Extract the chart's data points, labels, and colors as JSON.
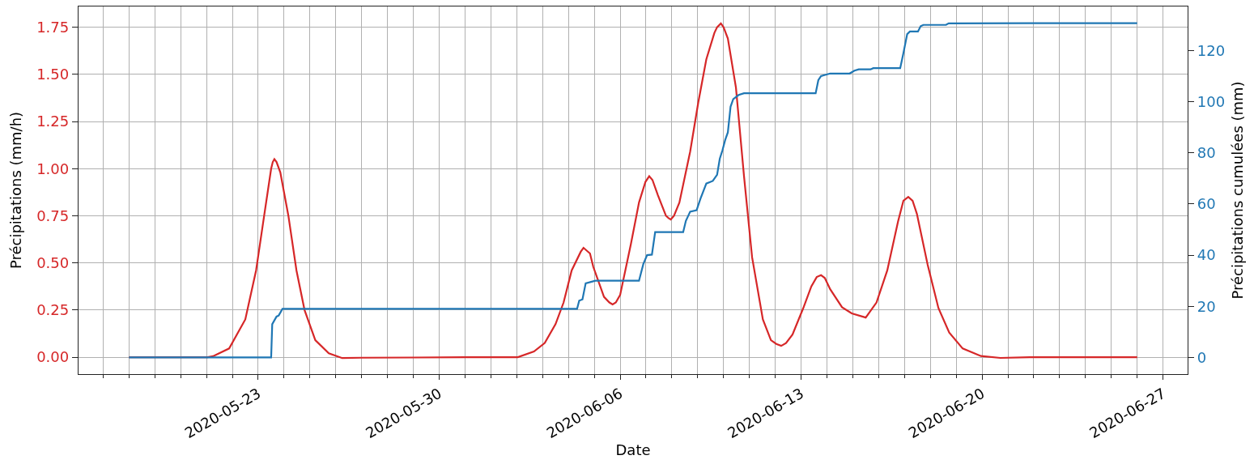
{
  "chart_data": {
    "type": "line",
    "xlabel": "Date",
    "ylabel": "Précipitations (mm/h)",
    "y2label": "Précipitations cumulées (mm)",
    "series": [
      {
        "color": "#d62728",
        "x": [
          "2020-05-18T00:00",
          "2020-05-21T01:00",
          "2020-05-21T06:00",
          "2020-05-21T21:00",
          "2020-05-22T12:00",
          "2020-05-22T22:00",
          "2020-05-23T05:30",
          "2020-05-23T12:00",
          "2020-05-23T13:30",
          "2020-05-23T15:00",
          "2020-05-23T17:00",
          "2020-05-23T20:30",
          "2020-05-24T04:00",
          "2020-05-24T11:30",
          "2020-05-24T19:00",
          "2020-05-25T05:00",
          "2020-05-25T17:30",
          "2020-05-26T06:00",
          "2020-05-27T00:00",
          "2020-05-29T00:00",
          "2020-05-31T00:00",
          "2020-06-02T01:00",
          "2020-06-02T16:00",
          "2020-06-03T02:00",
          "2020-06-03T12:00",
          "2020-06-03T19:30",
          "2020-06-04T03:00",
          "2020-06-04T11:30",
          "2020-06-04T14:00",
          "2020-06-04T20:00",
          "2020-06-04T23:00",
          "2020-06-05T09:00",
          "2020-06-05T14:00",
          "2020-06-05T17:00",
          "2020-06-05T20:00",
          "2020-06-06T00:00",
          "2020-06-06T10:00",
          "2020-06-06T17:30",
          "2020-06-06T23:30",
          "2020-06-07T03:00",
          "2020-06-07T06:00",
          "2020-06-07T11:00",
          "2020-06-07T18:30",
          "2020-06-07T21:00",
          "2020-06-07T23:00",
          "2020-06-08T02:00",
          "2020-06-08T07:00",
          "2020-06-08T17:00",
          "2020-06-09T00:30",
          "2020-06-09T08:00",
          "2020-06-09T15:30",
          "2020-06-09T18:00",
          "2020-06-09T21:30",
          "2020-06-10T00:00",
          "2020-06-10T04:00",
          "2020-06-10T11:30",
          "2020-06-10T19:00",
          "2020-06-11T02:30",
          "2020-06-11T12:30",
          "2020-06-11T20:00",
          "2020-06-12T01:00",
          "2020-06-12T05:30",
          "2020-06-12T10:00",
          "2020-06-12T16:00",
          "2020-06-13T02:00",
          "2020-06-13T09:30",
          "2020-06-13T14:30",
          "2020-06-13T18:30",
          "2020-06-13T22:00",
          "2020-06-14T03:00",
          "2020-06-14T14:00",
          "2020-06-14T23:00",
          "2020-06-15T12:00",
          "2020-06-15T22:00",
          "2020-06-16T08:00",
          "2020-06-16T18:00",
          "2020-06-16T23:00",
          "2020-06-17T03:30",
          "2020-06-17T07:30",
          "2020-06-17T11:30",
          "2020-06-17T21:30",
          "2020-06-18T07:30",
          "2020-06-18T17:30",
          "2020-06-19T06:00",
          "2020-06-19T23:00",
          "2020-06-20T17:00",
          "2020-06-22T00:00",
          "2020-06-26T00:00"
        ],
        "values": [
          0,
          0,
          0.005,
          0.046,
          0.2,
          0.46,
          0.75,
          1.0,
          1.035,
          1.05,
          1.035,
          0.98,
          0.75,
          0.46,
          0.25,
          0.09,
          0.02,
          -0.005,
          -0.003,
          -0.002,
          0,
          0,
          0.03,
          0.075,
          0.175,
          0.29,
          0.46,
          0.56,
          0.58,
          0.55,
          0.48,
          0.32,
          0.29,
          0.28,
          0.29,
          0.33,
          0.6,
          0.82,
          0.93,
          0.96,
          0.94,
          0.86,
          0.75,
          0.737,
          0.73,
          0.75,
          0.82,
          1.09,
          1.35,
          1.58,
          1.72,
          1.75,
          1.77,
          1.75,
          1.69,
          1.43,
          0.96,
          0.53,
          0.2,
          0.09,
          0.07,
          0.06,
          0.075,
          0.12,
          0.26,
          0.375,
          0.425,
          0.435,
          0.42,
          0.36,
          0.265,
          0.232,
          0.21,
          0.29,
          0.46,
          0.72,
          0.83,
          0.85,
          0.83,
          0.76,
          0.49,
          0.26,
          0.13,
          0.046,
          0.006,
          -0.004,
          0,
          0
        ]
      },
      {
        "color": "#1f77b4",
        "axis": "y2",
        "x": [
          "2020-05-18T00:00",
          "2020-05-23T12:00",
          "2020-05-23T13:00",
          "2020-05-23T17:00",
          "2020-05-23T19:00",
          "2020-05-23T22:30",
          "2020-06-04T08:00",
          "2020-06-04T10:00",
          "2020-06-04T13:00",
          "2020-06-04T16:00",
          "2020-06-05T01:00",
          "2020-06-06T17:30",
          "2020-06-06T21:30",
          "2020-06-07T01:00",
          "2020-06-07T05:30",
          "2020-06-07T08:30",
          "2020-06-08T10:30",
          "2020-06-08T13:00",
          "2020-06-08T17:00",
          "2020-06-08T23:00",
          "2020-06-09T02:30",
          "2020-06-09T08:00",
          "2020-06-09T14:00",
          "2020-06-09T18:00",
          "2020-06-09T20:30",
          "2020-06-09T23:00",
          "2020-06-10T01:30",
          "2020-06-10T04:00",
          "2020-06-10T06:30",
          "2020-06-10T09:00",
          "2020-06-10T14:00",
          "2020-06-10T19:00",
          "2020-06-13T13:30",
          "2020-06-13T16:00",
          "2020-06-13T18:30",
          "2020-06-14T03:00",
          "2020-06-14T21:00",
          "2020-06-15T01:30",
          "2020-06-15T05:30",
          "2020-06-15T16:30",
          "2020-06-15T19:00",
          "2020-06-16T20:00",
          "2020-06-16T23:00",
          "2020-06-17T02:30",
          "2020-06-17T05:00",
          "2020-06-17T12:30",
          "2020-06-17T15:00",
          "2020-06-17T17:30",
          "2020-06-18T14:30",
          "2020-06-18T17:00",
          "2020-06-26T00:00"
        ],
        "values": [
          0,
          0,
          13,
          16,
          16.4,
          19,
          19,
          22.2,
          22.7,
          29,
          30,
          30,
          36.5,
          40,
          40.2,
          49,
          49,
          53.4,
          57,
          57.6,
          62,
          68,
          69,
          71.4,
          77.7,
          81,
          85,
          88,
          98,
          101,
          102.6,
          103.3,
          103.3,
          108.4,
          110,
          111,
          111,
          112.1,
          112.6,
          112.6,
          113.1,
          113.1,
          119,
          126.4,
          127.4,
          127.4,
          129.5,
          130,
          130,
          130.6,
          130.7
        ]
      }
    ],
    "xlim": [
      "2020-05-16T01:10",
      "2020-06-27T22:50"
    ],
    "xticks": [
      {
        "value": "2020-05-17",
        "label": null
      },
      {
        "value": "2020-05-18",
        "label": null
      },
      {
        "value": "2020-05-19",
        "label": null
      },
      {
        "value": "2020-05-20",
        "label": null
      },
      {
        "value": "2020-05-21",
        "label": null
      },
      {
        "value": "2020-05-22",
        "label": null
      },
      "2020-05-23",
      {
        "value": "2020-05-24",
        "label": null
      },
      {
        "value": "2020-05-25",
        "label": null
      },
      {
        "value": "2020-05-26",
        "label": null
      },
      {
        "value": "2020-05-27",
        "label": null
      },
      {
        "value": "2020-05-28",
        "label": null
      },
      {
        "value": "2020-05-29",
        "label": null
      },
      "2020-05-30",
      {
        "value": "2020-05-31",
        "label": null
      },
      {
        "value": "2020-06-01",
        "label": null
      },
      {
        "value": "2020-06-02",
        "label": null
      },
      {
        "value": "2020-06-03",
        "label": null
      },
      {
        "value": "2020-06-04",
        "label": null
      },
      {
        "value": "2020-06-05",
        "label": null
      },
      "2020-06-06",
      {
        "value": "2020-06-07",
        "label": null
      },
      {
        "value": "2020-06-08",
        "label": null
      },
      {
        "value": "2020-06-09",
        "label": null
      },
      {
        "value": "2020-06-10",
        "label": null
      },
      {
        "value": "2020-06-11",
        "label": null
      },
      {
        "value": "2020-06-12",
        "label": null
      },
      "2020-06-13",
      {
        "value": "2020-06-14",
        "label": null
      },
      {
        "value": "2020-06-15",
        "label": null
      },
      {
        "value": "2020-06-16",
        "label": null
      },
      {
        "value": "2020-06-17",
        "label": null
      },
      {
        "value": "2020-06-18",
        "label": null
      },
      {
        "value": "2020-06-19",
        "label": null
      },
      "2020-06-20",
      {
        "value": "2020-06-21",
        "label": null
      },
      {
        "value": "2020-06-22",
        "label": null
      },
      {
        "value": "2020-06-23",
        "label": null
      },
      {
        "value": "2020-06-24",
        "label": null
      },
      {
        "value": "2020-06-25",
        "label": null
      },
      {
        "value": "2020-06-26",
        "label": null
      },
      "2020-06-27"
    ],
    "ylim": [
      -0.09,
      1.86
    ],
    "yticks": [
      {
        "value": 0,
        "label": "0.00"
      },
      0.25,
      {
        "value": 0.5,
        "label": "0.50"
      },
      0.75,
      {
        "value": 1,
        "label": "1.00"
      },
      1.25,
      {
        "value": 1.5,
        "label": "1.50"
      },
      1.75
    ],
    "y2lim": [
      -6.5,
      137.2
    ],
    "y2ticks": [
      0,
      20,
      40,
      60,
      80,
      100,
      120
    ],
    "grid": true,
    "marker": "none",
    "line_style": "solid"
  }
}
